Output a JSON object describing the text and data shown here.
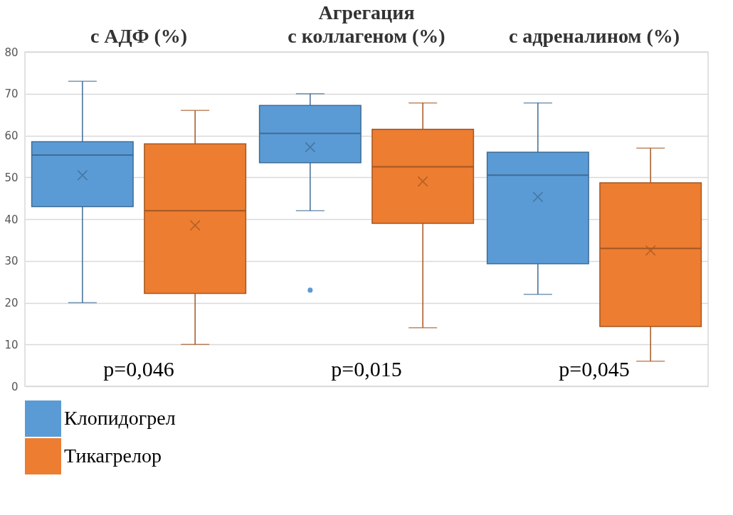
{
  "chart_data": {
    "type": "box",
    "title": "Агрегация",
    "categories": [
      "с АДФ (%)",
      "с коллагеном (%)",
      "с адреналином (%)"
    ],
    "series": [
      {
        "name": "Клопидогрел",
        "color": "#5b9bd5",
        "boxes": [
          {
            "low": 20,
            "q1": 43,
            "median": 55.3,
            "q3": 58.5,
            "high": 73,
            "mean": 50.5
          },
          {
            "low": 42,
            "q1": 53.5,
            "median": 60.5,
            "q3": 67.2,
            "high": 70,
            "mean": 57.2,
            "outliers": [
              23
            ]
          },
          {
            "low": 22,
            "q1": 29.3,
            "median": 50.5,
            "q3": 56,
            "high": 67.8,
            "mean": 45.3
          }
        ]
      },
      {
        "name": "Тикагрелор",
        "color": "#ed7d31",
        "boxes": [
          {
            "low": 10,
            "q1": 22.2,
            "median": 42,
            "q3": 58,
            "high": 66,
            "mean": 38.5
          },
          {
            "low": 14,
            "q1": 39,
            "median": 52.5,
            "q3": 61.5,
            "high": 67.8,
            "mean": 49
          },
          {
            "low": 6,
            "q1": 14.3,
            "median": 33,
            "q3": 48.7,
            "high": 57,
            "mean": 32.5
          }
        ]
      }
    ],
    "ylim": [
      0,
      80
    ],
    "yticks": [
      0,
      10,
      20,
      30,
      40,
      50,
      60,
      70,
      80
    ],
    "grid": "y",
    "legend": "bottom",
    "annotations": [
      "p=0,046",
      "p=0,015",
      "p=0,045"
    ]
  }
}
